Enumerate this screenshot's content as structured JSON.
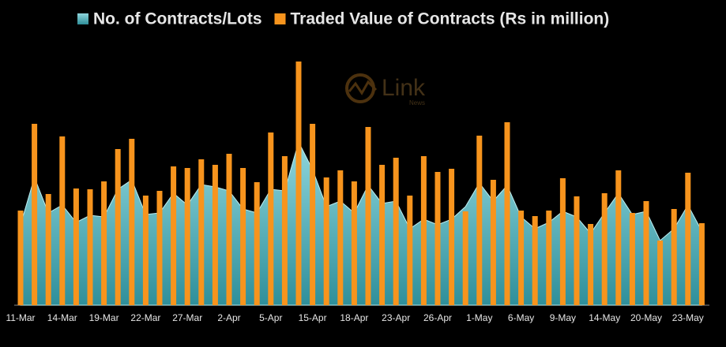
{
  "chart_data": {
    "type": "bar-area",
    "watermark": "Link",
    "watermark_sub": "News",
    "categories": [
      "11-Mar",
      null,
      null,
      "14-Mar",
      null,
      null,
      "19-Mar",
      null,
      null,
      "22-Mar",
      null,
      null,
      "27-Mar",
      null,
      null,
      "2-Apr",
      null,
      null,
      "5-Apr",
      null,
      null,
      "15-Apr",
      null,
      null,
      "18-Apr",
      null,
      null,
      "23-Apr",
      null,
      null,
      "26-Apr",
      null,
      null,
      "1-May",
      null,
      null,
      "6-May",
      null,
      null,
      "9-May",
      null,
      null,
      "14-May",
      null,
      null,
      "20-May",
      null,
      null,
      "23-May",
      null
    ],
    "series": [
      {
        "name": "No. of Contracts/Lots",
        "color": "#4fb3bf",
        "kind": "area",
        "values": [
          102,
          162,
          117,
          127,
          105,
          114,
          112,
          147,
          159,
          115,
          117,
          142,
          127,
          153,
          150,
          145,
          122,
          117,
          147,
          145,
          207,
          172,
          125,
          132,
          117,
          152,
          129,
          132,
          97,
          109,
          102,
          109,
          125,
          155,
          132,
          152,
          112,
          97,
          105,
          119,
          112,
          91,
          117,
          142,
          115,
          119,
          82,
          97,
          127,
          94
        ]
      },
      {
        "name": "Traded Value of Contracts (Rs in million)",
        "color": "#f7941d",
        "kind": "bar",
        "values": [
          120,
          230,
          141,
          214,
          148,
          147,
          157,
          198,
          211,
          139,
          145,
          176,
          174,
          185,
          178,
          192,
          174,
          156,
          219,
          189,
          309,
          230,
          162,
          171,
          157,
          226,
          178,
          187,
          139,
          189,
          169,
          173,
          119,
          215,
          159,
          232,
          120,
          113,
          120,
          161,
          138,
          103,
          142,
          171,
          117,
          132,
          82,
          122,
          168,
          104
        ]
      }
    ]
  }
}
